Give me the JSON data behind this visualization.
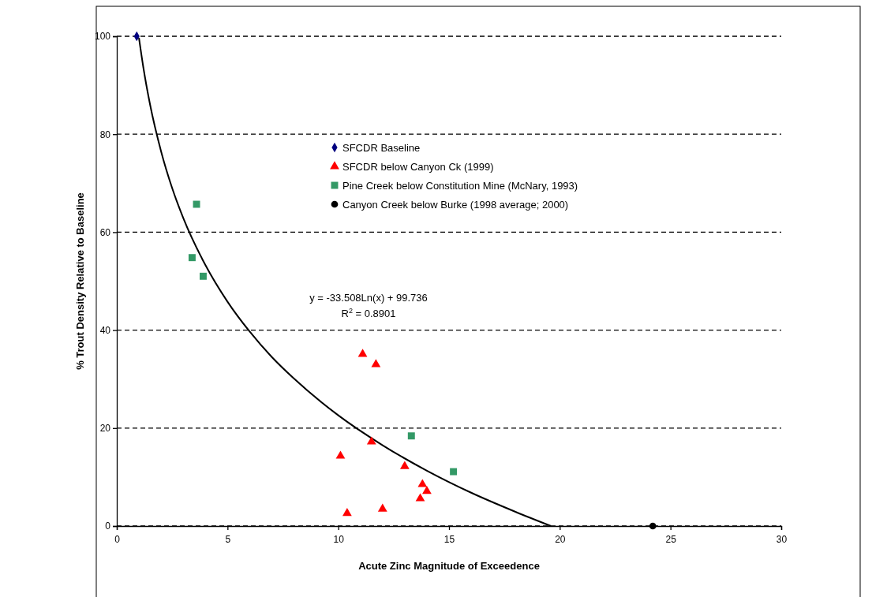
{
  "chart_data": {
    "type": "scatter",
    "xlabel": "Acute Zinc Magnitude of Exceedence",
    "ylabel": "% Trout Density Relative to Baseline",
    "xlim": [
      0,
      30
    ],
    "xticks": [
      0,
      5,
      10,
      15,
      20,
      25,
      30
    ],
    "ylim": [
      0,
      100
    ],
    "yticks": [
      0,
      20,
      40,
      60,
      80,
      100
    ],
    "grid": "y",
    "legend": "top right",
    "annotations": [
      "y = -33.508Ln(x) + 99.736",
      "R$^{2}$ = 0.8901"
    ],
    "series": [
      {
        "type": "line",
        "color": "#000000",
        "marker": "none",
        "line_style": "solid",
        "x": [
          1,
          1.2,
          1.5,
          2,
          2.5,
          3,
          4,
          5,
          6,
          7,
          8,
          10,
          12,
          14,
          16,
          18,
          19.6
        ],
        "values": [
          99.7,
          93.6,
          86.1,
          76.5,
          69,
          62.9,
          53.3,
          45.8,
          39.7,
          34.5,
          30.1,
          22.6,
          16.5,
          11.3,
          6.8,
          2.9,
          0
        ]
      },
      {
        "name": "SFCDR Baseline",
        "color": "#000080",
        "marker": "diamond",
        "x": [
          0.9
        ],
        "values": [
          100
        ]
      },
      {
        "name": "SFCDR below Canyon Ck (1999)",
        "color": "#ff0000",
        "marker": "triangle",
        "x": [
          11.1,
          11.7,
          11.5,
          10.1,
          13,
          13.8,
          14,
          13.7,
          12,
          10.4
        ],
        "values": [
          35.1,
          33,
          17.2,
          14.3,
          12.2,
          8.5,
          7.1,
          5.6,
          3.5,
          2.6
        ]
      },
      {
        "name": "Pine Creek below Constitution Mine (McNary, 1993)",
        "color": "#339966",
        "marker": "square",
        "x": [
          3.6,
          3.4,
          3.9,
          13.3,
          15.2
        ],
        "values": [
          65.7,
          54.8,
          51,
          18.4,
          11.1
        ]
      },
      {
        "name": "Canyon Creek below Burke (1998 average; 2000)",
        "color": "#000000",
        "marker": "circle",
        "x": [
          24.2
        ],
        "values": [
          0
        ]
      }
    ]
  }
}
